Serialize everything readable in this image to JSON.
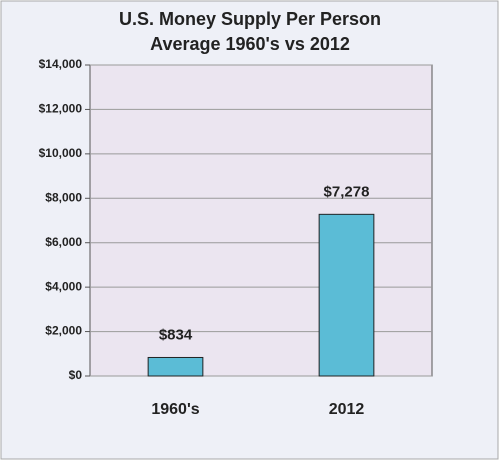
{
  "chart_data": {
    "type": "bar",
    "title": "U.S. Money Supply Per Person",
    "subtitle": "Average 1960's vs 2012",
    "categories": [
      "1960's",
      "2012"
    ],
    "values": [
      834,
      7278
    ],
    "value_labels": [
      "$834",
      "$7,278"
    ],
    "color": "#5bbcd6",
    "ylim": [
      0,
      14000
    ],
    "yticks": [
      {
        "value": 0,
        "label": "$0"
      },
      {
        "value": 2000,
        "label": "$2,000"
      },
      {
        "value": 4000,
        "label": "$4,000"
      },
      {
        "value": 6000,
        "label": "$6,000"
      },
      {
        "value": 8000,
        "label": "$8,000"
      },
      {
        "value": 10000,
        "label": "$10,000"
      },
      {
        "value": 12000,
        "label": "$12,000"
      },
      {
        "value": 14000,
        "label": "$14,000"
      }
    ],
    "grid": true
  }
}
